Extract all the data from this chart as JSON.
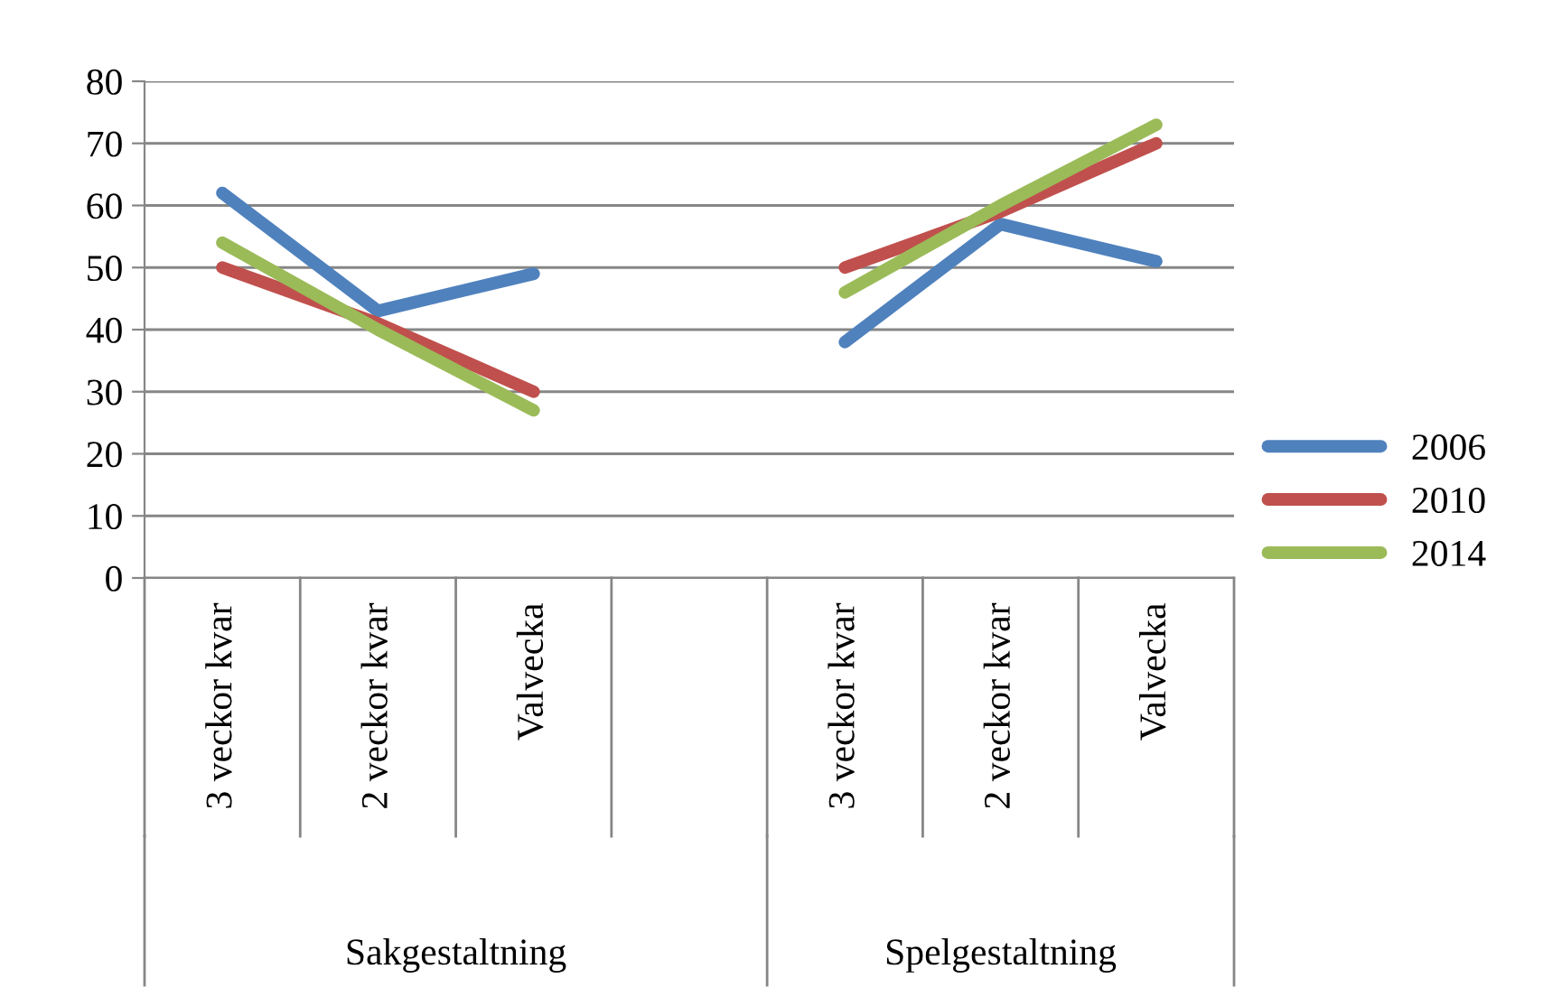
{
  "chart_data": {
    "type": "line",
    "categories": [
      "3 veckor kvar",
      "2 veckor kvar",
      "Valvecka",
      null,
      "3 veckor kvar",
      "2 veckor kvar",
      "Valvecka"
    ],
    "series": [
      {
        "name": "2006",
        "color": "#4f81bd",
        "values": [
          62,
          43,
          49,
          null,
          38,
          57,
          51
        ]
      },
      {
        "name": "2010",
        "color": "#c0504d",
        "values": [
          50,
          41,
          30,
          null,
          50,
          59,
          70
        ]
      },
      {
        "name": "2014",
        "color": "#9bbb59",
        "values": [
          54,
          40,
          27,
          null,
          46,
          60,
          73
        ]
      }
    ],
    "ylim": [
      0,
      80
    ],
    "yticks": [
      0,
      10,
      20,
      30,
      40,
      50,
      60,
      70,
      80
    ],
    "grid": "y",
    "legend": "right",
    "marker": "none",
    "line_style": "solid",
    "annotations": [
      "Sakgestaltning",
      "Spelgestaltning"
    ]
  }
}
